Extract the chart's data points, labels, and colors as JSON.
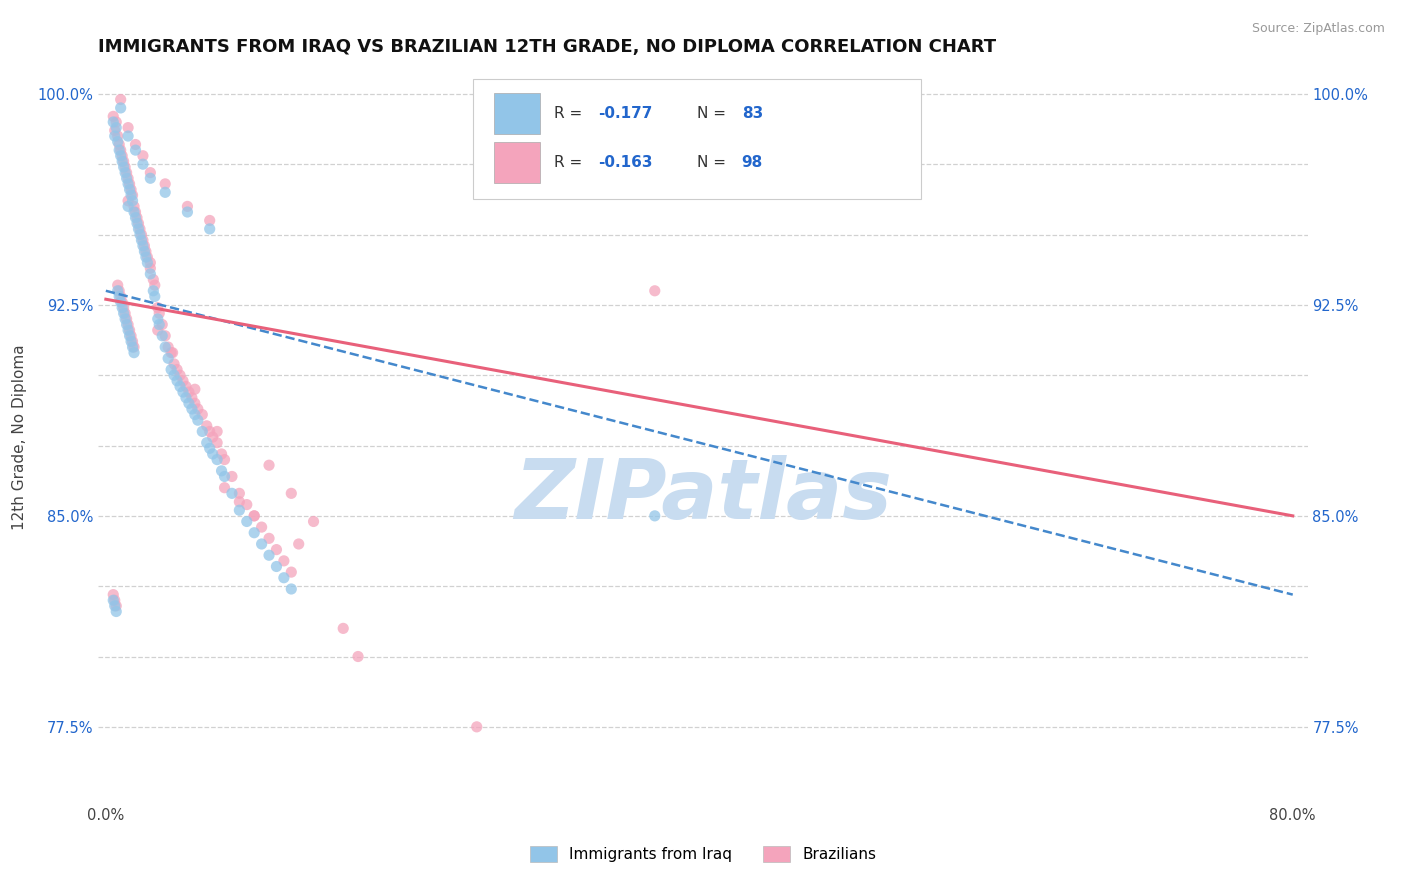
{
  "title": "IMMIGRANTS FROM IRAQ VS BRAZILIAN 12TH GRADE, NO DIPLOMA CORRELATION CHART",
  "source": "Source: ZipAtlas.com",
  "ylabel": "12th Grade, No Diploma",
  "xlim": [
    -0.005,
    0.81
  ],
  "ylim": [
    0.748,
    1.008
  ],
  "iraq_color": "#92C5E8",
  "brazil_color": "#F4A4BC",
  "iraq_line_color": "#4488CC",
  "brazil_line_color": "#E8607A",
  "watermark_color": "#C8DCF0",
  "watermark": "ZIPatlas",
  "legend_labels": [
    "Immigrants from Iraq",
    "Brazilians"
  ],
  "r_iraq": "-0.177",
  "n_iraq": "83",
  "r_brazil": "-0.163",
  "n_brazil": "98",
  "ytick_values": [
    0.775,
    0.8,
    0.825,
    0.85,
    0.875,
    0.9,
    0.925,
    0.95,
    0.975,
    1.0
  ],
  "ytick_labels": [
    "77.5%",
    "",
    "",
    "85.0%",
    "",
    "",
    "92.5%",
    "",
    "",
    "100.0%"
  ],
  "iraq_line_x": [
    0.0,
    0.8
  ],
  "iraq_line_y": [
    0.93,
    0.822
  ],
  "brazil_line_x": [
    0.0,
    0.8
  ],
  "brazil_line_y": [
    0.927,
    0.85
  ],
  "iraq_scatter_x": [
    0.005,
    0.006,
    0.007,
    0.008,
    0.009,
    0.01,
    0.01,
    0.011,
    0.012,
    0.013,
    0.014,
    0.015,
    0.015,
    0.016,
    0.017,
    0.018,
    0.019,
    0.02,
    0.021,
    0.022,
    0.023,
    0.024,
    0.025,
    0.026,
    0.027,
    0.028,
    0.03,
    0.032,
    0.033,
    0.035,
    0.036,
    0.038,
    0.04,
    0.042,
    0.044,
    0.046,
    0.048,
    0.05,
    0.052,
    0.054,
    0.056,
    0.058,
    0.06,
    0.062,
    0.065,
    0.068,
    0.07,
    0.072,
    0.075,
    0.078,
    0.08,
    0.085,
    0.09,
    0.095,
    0.1,
    0.105,
    0.11,
    0.115,
    0.12,
    0.125,
    0.008,
    0.009,
    0.01,
    0.011,
    0.012,
    0.013,
    0.014,
    0.015,
    0.016,
    0.017,
    0.018,
    0.019,
    0.005,
    0.006,
    0.007,
    0.37,
    0.04,
    0.055,
    0.07,
    0.03,
    0.025,
    0.02,
    0.015
  ],
  "iraq_scatter_y": [
    0.99,
    0.985,
    0.988,
    0.983,
    0.98,
    0.978,
    0.995,
    0.976,
    0.974,
    0.972,
    0.97,
    0.968,
    0.96,
    0.966,
    0.964,
    0.962,
    0.958,
    0.956,
    0.954,
    0.952,
    0.95,
    0.948,
    0.946,
    0.944,
    0.942,
    0.94,
    0.936,
    0.93,
    0.928,
    0.92,
    0.918,
    0.914,
    0.91,
    0.906,
    0.902,
    0.9,
    0.898,
    0.896,
    0.894,
    0.892,
    0.89,
    0.888,
    0.886,
    0.884,
    0.88,
    0.876,
    0.874,
    0.872,
    0.87,
    0.866,
    0.864,
    0.858,
    0.852,
    0.848,
    0.844,
    0.84,
    0.836,
    0.832,
    0.828,
    0.824,
    0.93,
    0.928,
    0.926,
    0.924,
    0.922,
    0.92,
    0.918,
    0.916,
    0.914,
    0.912,
    0.91,
    0.908,
    0.82,
    0.818,
    0.816,
    0.85,
    0.965,
    0.958,
    0.952,
    0.97,
    0.975,
    0.98,
    0.985
  ],
  "brazil_scatter_x": [
    0.005,
    0.006,
    0.007,
    0.008,
    0.009,
    0.01,
    0.01,
    0.011,
    0.012,
    0.013,
    0.014,
    0.015,
    0.015,
    0.016,
    0.017,
    0.018,
    0.019,
    0.02,
    0.021,
    0.022,
    0.023,
    0.024,
    0.025,
    0.026,
    0.027,
    0.028,
    0.03,
    0.032,
    0.033,
    0.035,
    0.036,
    0.038,
    0.04,
    0.042,
    0.044,
    0.046,
    0.048,
    0.05,
    0.052,
    0.054,
    0.056,
    0.058,
    0.06,
    0.062,
    0.065,
    0.068,
    0.07,
    0.072,
    0.075,
    0.078,
    0.08,
    0.085,
    0.09,
    0.095,
    0.1,
    0.105,
    0.11,
    0.115,
    0.12,
    0.125,
    0.008,
    0.009,
    0.01,
    0.011,
    0.012,
    0.013,
    0.014,
    0.015,
    0.016,
    0.017,
    0.018,
    0.019,
    0.005,
    0.006,
    0.007,
    0.37,
    0.04,
    0.055,
    0.07,
    0.03,
    0.025,
    0.02,
    0.015,
    0.17,
    0.25,
    0.13,
    0.16,
    0.08,
    0.09,
    0.1,
    0.035,
    0.045,
    0.06,
    0.075,
    0.11,
    0.125,
    0.14,
    0.03
  ],
  "brazil_scatter_y": [
    0.992,
    0.987,
    0.99,
    0.985,
    0.982,
    0.98,
    0.998,
    0.978,
    0.976,
    0.974,
    0.972,
    0.97,
    0.962,
    0.968,
    0.966,
    0.964,
    0.96,
    0.958,
    0.956,
    0.954,
    0.952,
    0.95,
    0.948,
    0.946,
    0.944,
    0.942,
    0.938,
    0.934,
    0.932,
    0.924,
    0.922,
    0.918,
    0.914,
    0.91,
    0.908,
    0.904,
    0.902,
    0.9,
    0.898,
    0.896,
    0.894,
    0.892,
    0.89,
    0.888,
    0.886,
    0.882,
    0.88,
    0.878,
    0.876,
    0.872,
    0.87,
    0.864,
    0.858,
    0.854,
    0.85,
    0.846,
    0.842,
    0.838,
    0.834,
    0.83,
    0.932,
    0.93,
    0.928,
    0.926,
    0.924,
    0.922,
    0.92,
    0.918,
    0.916,
    0.914,
    0.912,
    0.91,
    0.822,
    0.82,
    0.818,
    0.93,
    0.968,
    0.96,
    0.955,
    0.972,
    0.978,
    0.982,
    0.988,
    0.8,
    0.775,
    0.84,
    0.81,
    0.86,
    0.855,
    0.85,
    0.916,
    0.908,
    0.895,
    0.88,
    0.868,
    0.858,
    0.848,
    0.94
  ]
}
